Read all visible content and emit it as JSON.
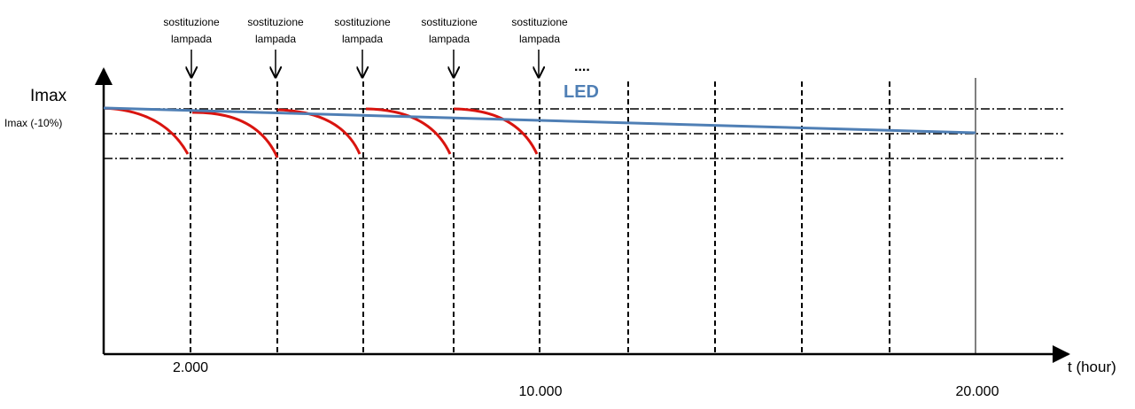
{
  "labels": {
    "y_max": "Imax",
    "y_max_minus": "Imax (-10%)",
    "x_axis": "t (hour)",
    "led": "LED",
    "ellipsis": "....",
    "x_ticks": [
      "2.000",
      "10.000",
      "20.000"
    ]
  },
  "replacements": [
    {
      "line1": "sostituzione",
      "line2": "lampada"
    },
    {
      "line1": "sostituzione",
      "line2": "lampada"
    },
    {
      "line1": "sostituzione",
      "line2": "lampada"
    },
    {
      "line1": "sostituzione",
      "line2": "lampada"
    },
    {
      "line1": "sostituzione",
      "line2": "lampada"
    }
  ]
}
